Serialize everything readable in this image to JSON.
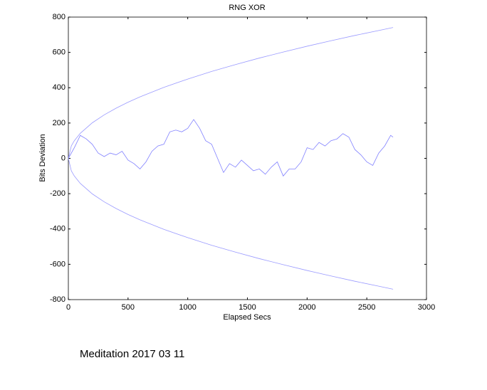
{
  "chart_data": {
    "type": "line",
    "title": "RNG XOR",
    "xlabel": "Elapsed Secs",
    "ylabel": "Bits Deviation",
    "caption": "Meditation 2017 03 11",
    "xlim": [
      0,
      3000
    ],
    "xticks": [
      0,
      500,
      1000,
      1500,
      2000,
      2500,
      3000
    ],
    "ylim": [
      -800,
      800
    ],
    "yticks": [
      -800,
      -600,
      -400,
      -200,
      0,
      200,
      400,
      600,
      800
    ],
    "grid": false,
    "series": [
      {
        "color": "#9a9aff",
        "x": [
          0,
          25,
          50,
          100,
          200,
          300,
          400,
          500,
          600,
          800,
          1000,
          1200,
          1400,
          1600,
          1800,
          2000,
          2200,
          2400,
          2600,
          2720
        ],
        "values": [
          0,
          71,
          100,
          142,
          201,
          246,
          284,
          318,
          348,
          402,
          449,
          492,
          531,
          568,
          602,
          635,
          666,
          696,
          724,
          741
        ]
      },
      {
        "color": "#9a9aff",
        "x": [
          0,
          25,
          50,
          100,
          200,
          300,
          400,
          500,
          600,
          800,
          1000,
          1200,
          1400,
          1600,
          1800,
          2000,
          2200,
          2400,
          2600,
          2720
        ],
        "values": [
          0,
          -71,
          -100,
          -142,
          -201,
          -246,
          -284,
          -318,
          -348,
          -402,
          -449,
          -492,
          -531,
          -568,
          -602,
          -635,
          -666,
          -696,
          -724,
          -741
        ]
      },
      {
        "color": "#8080ff",
        "x": [
          0,
          50,
          100,
          150,
          200,
          250,
          300,
          350,
          400,
          450,
          500,
          550,
          600,
          650,
          700,
          750,
          800,
          850,
          900,
          950,
          1000,
          1050,
          1100,
          1150,
          1200,
          1250,
          1300,
          1350,
          1400,
          1450,
          1500,
          1550,
          1600,
          1650,
          1700,
          1750,
          1800,
          1850,
          1900,
          1950,
          2000,
          2050,
          2100,
          2150,
          2200,
          2250,
          2300,
          2350,
          2400,
          2450,
          2500,
          2550,
          2600,
          2650,
          2700,
          2720
        ],
        "values": [
          0,
          60,
          130,
          110,
          80,
          30,
          10,
          30,
          20,
          40,
          -10,
          -30,
          -60,
          -20,
          40,
          70,
          80,
          150,
          160,
          150,
          170,
          220,
          170,
          100,
          80,
          0,
          -80,
          -30,
          -50,
          -10,
          -40,
          -70,
          -60,
          -90,
          -50,
          -20,
          -100,
          -60,
          -60,
          -20,
          60,
          50,
          90,
          70,
          100,
          110,
          140,
          120,
          50,
          20,
          -20,
          -40,
          30,
          70,
          130,
          120
        ]
      }
    ]
  }
}
